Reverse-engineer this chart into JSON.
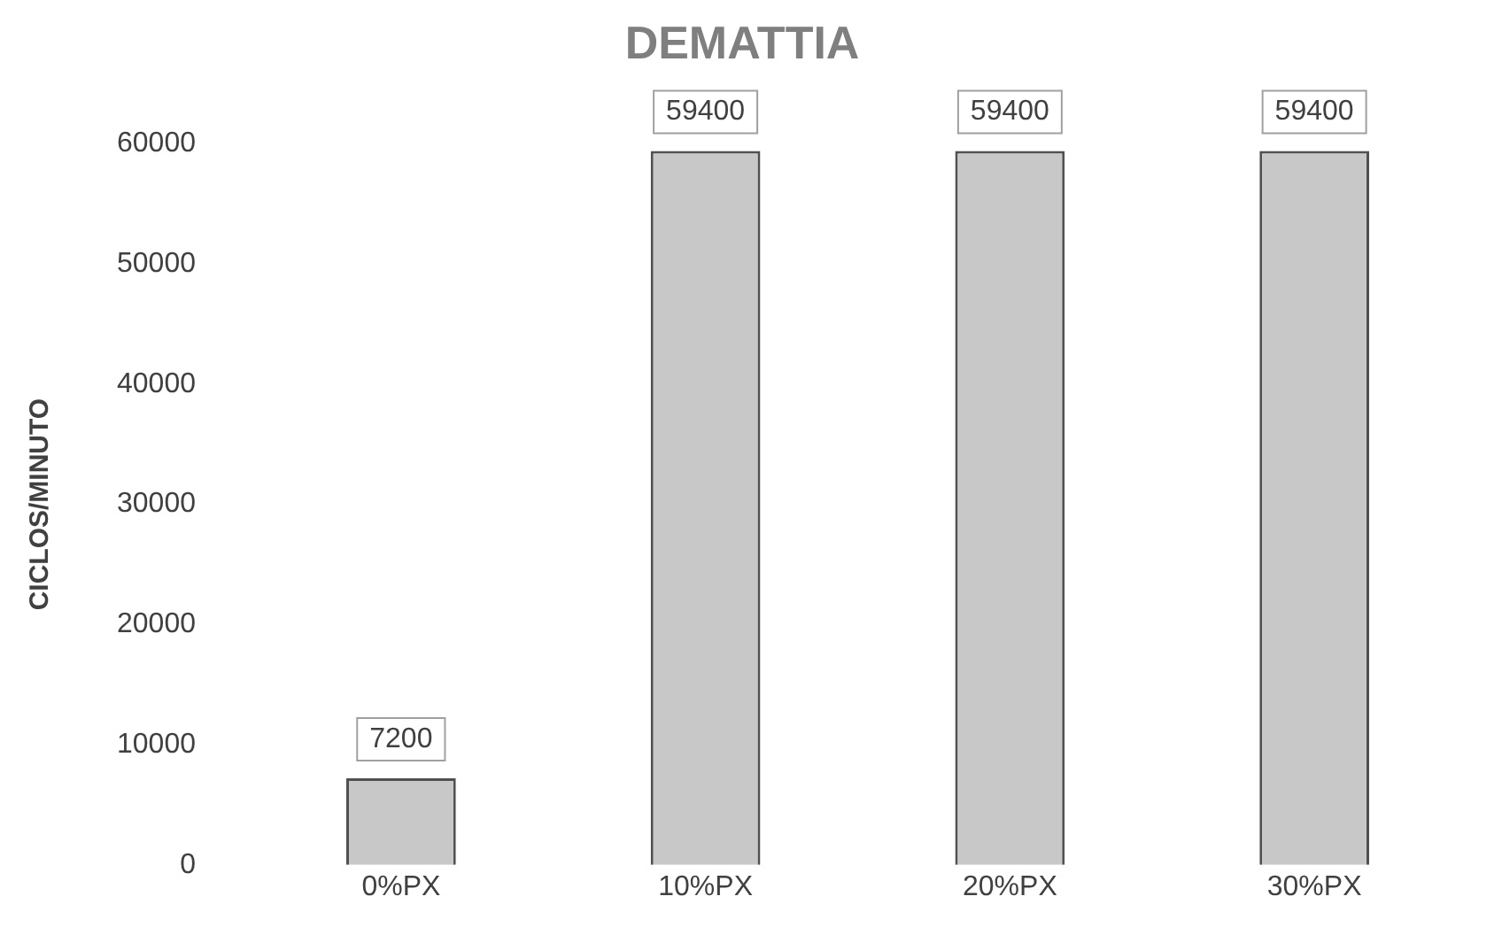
{
  "chart_data": {
    "type": "bar",
    "title": "DEMATTIA",
    "ylabel": "CICLOS/MINUTO",
    "categories": [
      "0%PX",
      "10%PX",
      "20%PX",
      "30%PX"
    ],
    "values": [
      7200,
      59400,
      59400,
      59400
    ],
    "color": "#c8c8c8",
    "ylim": [
      0,
      60000
    ],
    "yticks": [
      0,
      10000,
      20000,
      30000,
      40000,
      50000,
      60000
    ],
    "grid": false,
    "legend": false,
    "data_labels": true
  }
}
